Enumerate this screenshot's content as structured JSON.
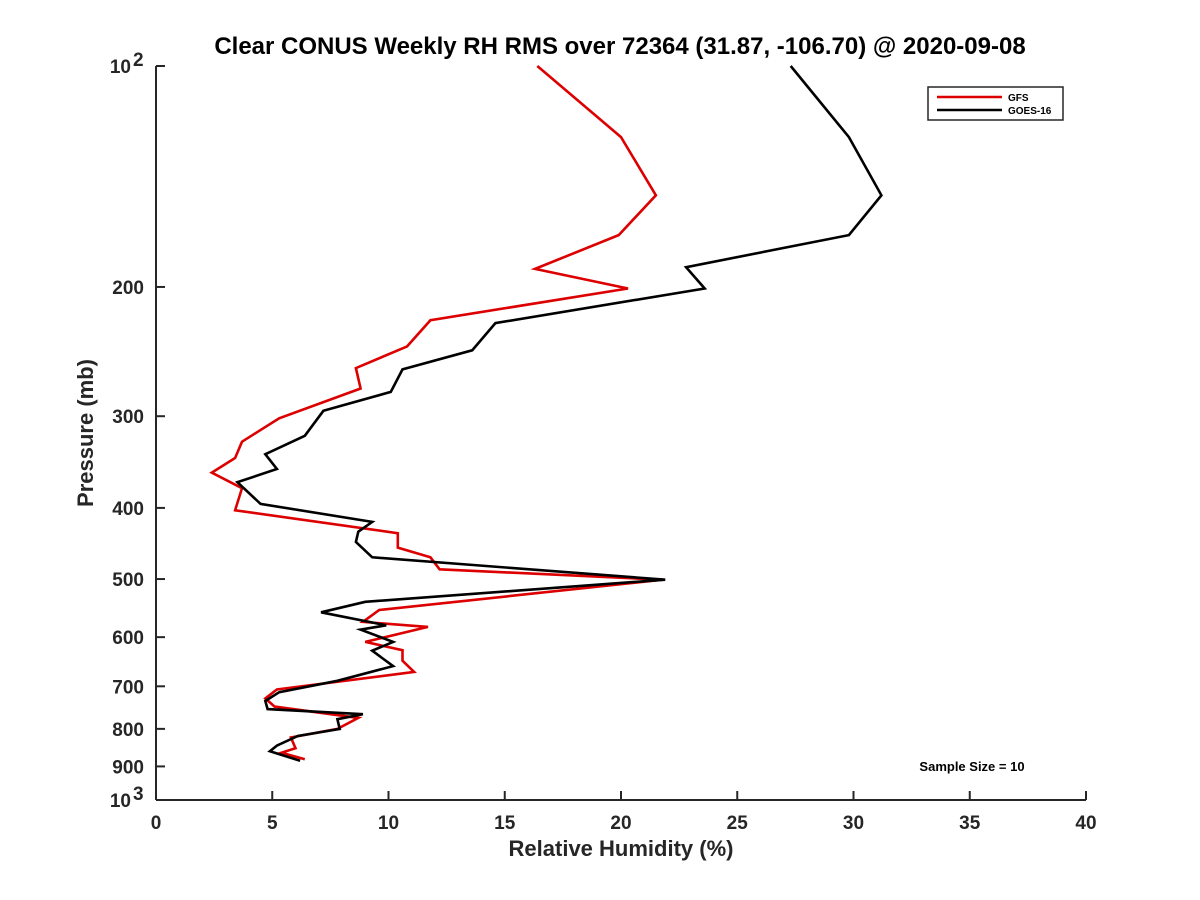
{
  "chart_data": {
    "type": "line",
    "title": "Clear CONUS Weekly RH RMS over 72364 (31.87, -106.70) @ 2020-09-08",
    "xlabel": "Relative Humidity (%)",
    "ylabel": "Pressure (mb)",
    "xlim": [
      0,
      40
    ],
    "ylim": [
      100,
      1000
    ],
    "y_scale": "log",
    "y_reversed": true,
    "x_ticks": [
      0,
      5,
      10,
      15,
      20,
      25,
      30,
      35,
      40
    ],
    "y_ticks": [
      {
        "value": 100,
        "label": "10",
        "sup": "2"
      },
      {
        "value": 200,
        "label": "200"
      },
      {
        "value": 300,
        "label": "300"
      },
      {
        "value": 400,
        "label": "400"
      },
      {
        "value": 500,
        "label": "500"
      },
      {
        "value": 600,
        "label": "600"
      },
      {
        "value": 700,
        "label": "700"
      },
      {
        "value": 800,
        "label": "800"
      },
      {
        "value": 900,
        "label": "900"
      },
      {
        "value": 1000,
        "label": "10",
        "sup": "3"
      }
    ],
    "legend_position": "top-right",
    "annotation": "Sample Size = 10",
    "series": [
      {
        "name": "GFS",
        "color": "#dd0000",
        "points": [
          [
            16.4,
            100
          ],
          [
            20.0,
            125
          ],
          [
            21.5,
            150
          ],
          [
            19.9,
            170
          ],
          [
            16.3,
            189
          ],
          [
            20.3,
            201
          ],
          [
            11.8,
            222
          ],
          [
            10.8,
            241
          ],
          [
            8.6,
            258
          ],
          [
            8.8,
            275
          ],
          [
            5.3,
            302
          ],
          [
            3.7,
            325
          ],
          [
            3.4,
            342
          ],
          [
            2.4,
            358
          ],
          [
            3.7,
            376
          ],
          [
            3.4,
            403
          ],
          [
            10.4,
            433
          ],
          [
            10.4,
            453
          ],
          [
            11.8,
            467
          ],
          [
            12.2,
            485
          ],
          [
            21.8,
            501
          ],
          [
            9.6,
            551
          ],
          [
            8.9,
            572
          ],
          [
            11.7,
            581
          ],
          [
            9.0,
            609
          ],
          [
            10.6,
            625
          ],
          [
            10.6,
            646
          ],
          [
            11.1,
            669
          ],
          [
            5.2,
            707
          ],
          [
            4.7,
            727
          ],
          [
            5.1,
            746
          ],
          [
            8.7,
            773
          ],
          [
            7.8,
            800
          ],
          [
            5.8,
            822
          ],
          [
            6.0,
            850
          ],
          [
            5.4,
            862
          ],
          [
            6.4,
            880
          ]
        ]
      },
      {
        "name": "GOES-16",
        "color": "#000000",
        "points": [
          [
            27.3,
            100
          ],
          [
            29.8,
            125
          ],
          [
            31.2,
            150
          ],
          [
            29.8,
            170
          ],
          [
            22.8,
            188
          ],
          [
            23.6,
            201
          ],
          [
            14.6,
            224
          ],
          [
            13.6,
            244
          ],
          [
            10.6,
            259
          ],
          [
            10.1,
            278
          ],
          [
            7.2,
            295
          ],
          [
            6.4,
            319
          ],
          [
            4.7,
            338
          ],
          [
            5.2,
            354
          ],
          [
            3.5,
            369
          ],
          [
            4.5,
            395
          ],
          [
            9.3,
            418
          ],
          [
            8.7,
            431
          ],
          [
            8.6,
            445
          ],
          [
            9.3,
            467
          ],
          [
            21.9,
            501
          ],
          [
            9.0,
            537
          ],
          [
            7.1,
            555
          ],
          [
            9.9,
            578
          ],
          [
            8.8,
            586
          ],
          [
            10.2,
            609
          ],
          [
            9.3,
            626
          ],
          [
            10.2,
            657
          ],
          [
            7.8,
            688
          ],
          [
            5.3,
            713
          ],
          [
            4.7,
            733
          ],
          [
            4.8,
            752
          ],
          [
            8.9,
            764
          ],
          [
            7.8,
            776
          ],
          [
            7.9,
            800
          ],
          [
            6.1,
            818
          ],
          [
            5.2,
            843
          ],
          [
            4.9,
            858
          ],
          [
            6.2,
            884
          ]
        ]
      }
    ]
  }
}
